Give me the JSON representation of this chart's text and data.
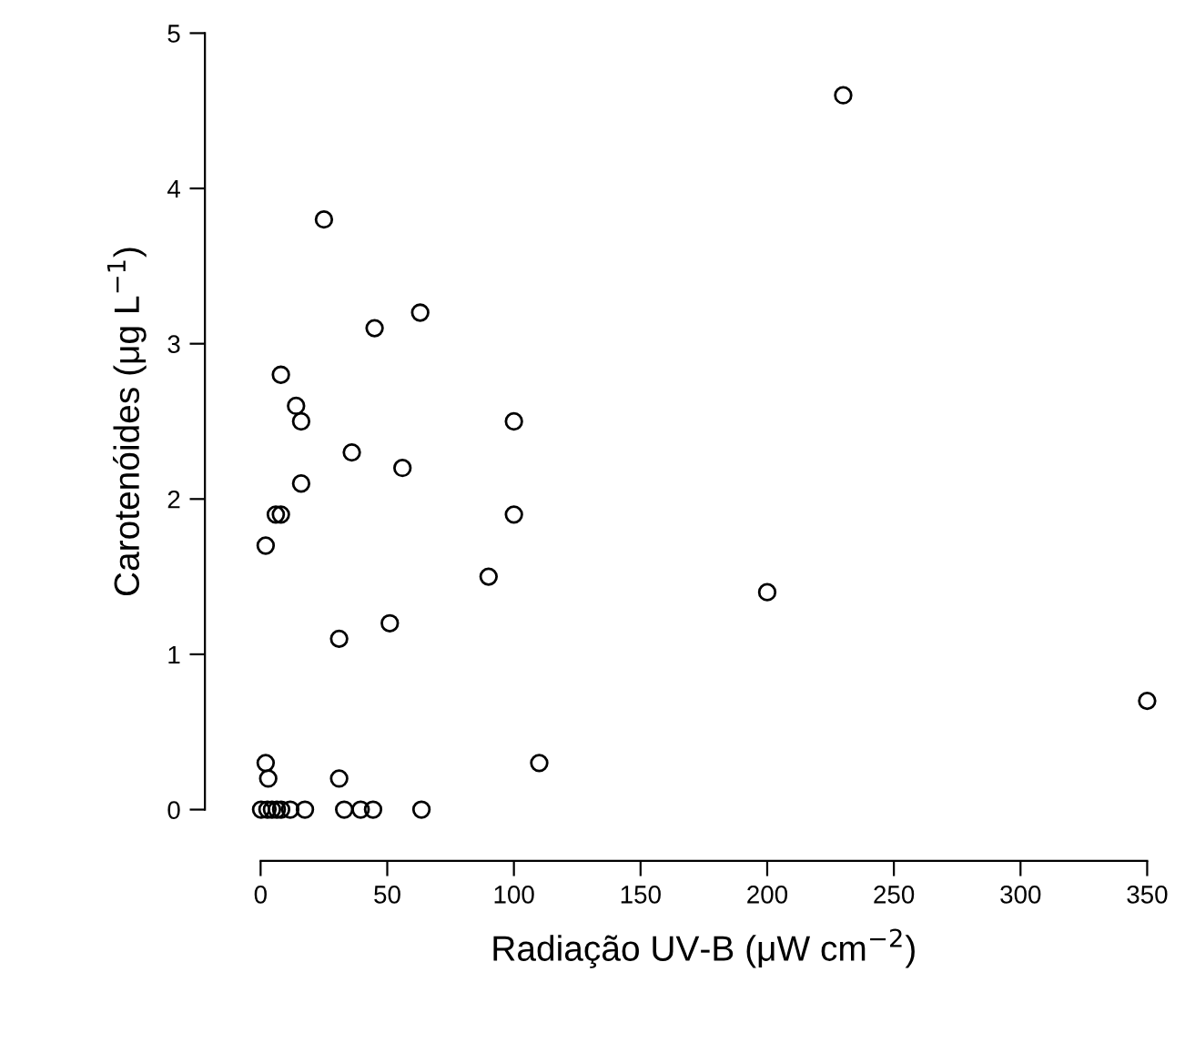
{
  "chart_data": {
    "type": "scatter",
    "xlabel": "Radiação UV-B (μW cm$^{−2}$)",
    "ylabel": "Carotenóides (μg L$^{−1}$)",
    "x": [
      25,
      63,
      45,
      8,
      14,
      16,
      100,
      36,
      56,
      16,
      6,
      8,
      100,
      2,
      90,
      51,
      31,
      2,
      110,
      3,
      31,
      0.2,
      2.7,
      4.5,
      6.4,
      8.1,
      11.7,
      17.5,
      33,
      39.5,
      44.4,
      63.5,
      230,
      200,
      350
    ],
    "values": [
      3.8,
      3.2,
      3.1,
      2.8,
      2.6,
      2.5,
      2.5,
      2.3,
      2.2,
      2.1,
      1.9,
      1.9,
      1.9,
      1.7,
      1.5,
      1.2,
      1.1,
      0.3,
      0.3,
      0.2,
      0.2,
      0,
      0,
      0,
      0,
      0,
      0,
      0,
      0,
      0,
      0,
      0,
      4.6,
      1.4,
      0.7
    ],
    "color": "#000000",
    "marker": "circle",
    "grid": false,
    "legend": false,
    "xlim": [
      0,
      350
    ],
    "ylim": [
      0,
      5
    ],
    "xticks": [
      0,
      50,
      100,
      150,
      200,
      250,
      300,
      350
    ],
    "yticks": [
      0,
      1,
      2,
      3,
      4,
      5
    ]
  }
}
